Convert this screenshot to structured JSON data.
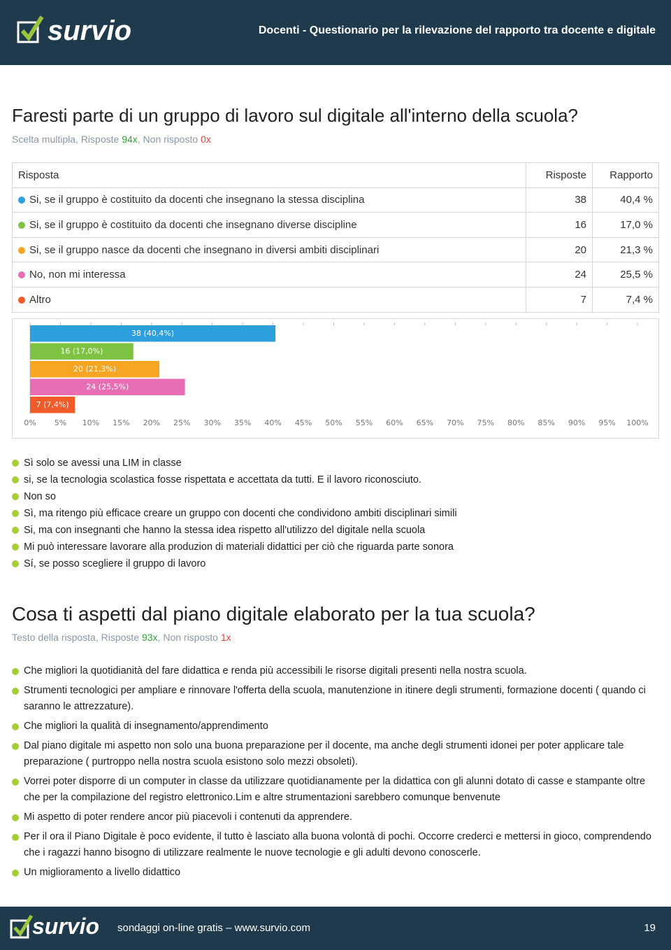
{
  "header": {
    "logo": "survio",
    "title": "Docenti - Questionario per la rilevazione del rapporto tra docente e digitale"
  },
  "question1": {
    "title": "Faresti parte di un gruppo di lavoro sul digitale all'interno della scuola?",
    "meta": {
      "kind": "Scelta multipla, Risposte ",
      "answered": "94x",
      "sep": ", Non risposto ",
      "unanswered": "0x"
    },
    "table": {
      "headers": [
        "Risposta",
        "Risposte",
        "Rapporto"
      ],
      "rows": [
        [
          "Si, se il gruppo è costituito da docenti che insegnano la stessa disciplina",
          "38",
          "40,4 %"
        ],
        [
          "Si, se il gruppo è costituito da docenti che insegnano diverse discipline",
          "16",
          "17,0 %"
        ],
        [
          "Si, se il gruppo nasce da docenti che insegnano in diversi ambiti disciplinari",
          "20",
          "21,3 %"
        ],
        [
          "No, non mi interessa",
          "24",
          "25,5 %"
        ],
        [
          "Altro",
          "7",
          "7,4 %"
        ]
      ]
    },
    "other_answers": [
      "Sì solo se avessi una LIM in classe",
      "si, se la tecnologia scolastica fosse rispettata e accettata da tutti. E il lavoro riconosciuto.",
      "Non so",
      "Sì, ma ritengo più efficace creare un gruppo con docenti che condividono ambiti disciplinari simili",
      "Si, ma con insegnanti che hanno la stessa idea rispetto all'utilizzo del digitale nella scuola",
      "Mi può interessare lavorare alla produzion di materiali didattici per ciò che riguarda parte sonora",
      "Sí, se posso scegliere il gruppo di lavoro"
    ]
  },
  "chart_data": {
    "type": "bar",
    "orientation": "horizontal",
    "values": [
      40.4,
      17.0,
      21.3,
      25.5,
      7.4
    ],
    "value_labels": [
      "38 (40,4%)",
      "16 (17,0%)",
      "20 (21,3%)",
      "24 (25,5%)",
      "7 (7,4%)"
    ],
    "colors": [
      "#2d9fdc",
      "#7dc242",
      "#f6a623",
      "#e86db4",
      "#f15a29"
    ],
    "xlim": [
      0,
      100
    ],
    "xticks": [
      {
        "value": 0,
        "label": "0%"
      },
      {
        "value": 5,
        "label": "5%"
      },
      {
        "value": 10,
        "label": "10%"
      },
      {
        "value": 15,
        "label": "15%"
      },
      {
        "value": 20,
        "label": "20%"
      },
      {
        "value": 25,
        "label": "25%"
      },
      {
        "value": 30,
        "label": "30%"
      },
      {
        "value": 35,
        "label": "35%"
      },
      {
        "value": 40,
        "label": "40%"
      },
      {
        "value": 45,
        "label": "45%"
      },
      {
        "value": 50,
        "label": "50%"
      },
      {
        "value": 55,
        "label": "55%"
      },
      {
        "value": 60,
        "label": "60%"
      },
      {
        "value": 65,
        "label": "65%"
      },
      {
        "value": 70,
        "label": "70%"
      },
      {
        "value": 75,
        "label": "75%"
      },
      {
        "value": 80,
        "label": "80%"
      },
      {
        "value": 85,
        "label": "85%"
      },
      {
        "value": 90,
        "label": "90%"
      },
      {
        "value": 95,
        "label": "95%"
      },
      {
        "value": 100,
        "label": "100%"
      }
    ]
  },
  "question2": {
    "title": "Cosa ti aspetti dal piano digitale elaborato per la tua scuola?",
    "meta": {
      "kind": "Testo della risposta, Risposte ",
      "answered": "93x",
      "sep": ", Non risposto ",
      "unanswered": "1x"
    },
    "answers": [
      "Che migliori la quotidianità del fare didattica e renda più accessibili le risorse digitali presenti nella nostra scuola.",
      "Strumenti tecnologici per ampliare e rinnovare l'offerta della scuola, manutenzione in itinere degli strumenti, formazione docenti ( quando ci saranno le attrezzature).",
      "Che migliori la qualità di insegnamento/apprendimento",
      "Dal piano digitale mi aspetto non solo una buona preparazione per il docente, ma anche degli strumenti idonei per poter applicare tale preparazione ( purtroppo nella nostra scuola esistono solo mezzi obsoleti).",
      "Vorrei poter disporre di un computer in classe da utilizzare quotidianamente per la didattica con gli alunni dotato di casse e stampante oltre che per la compilazione del registro elettronico.Lim e altre strumentazioni sarebbero comunque benvenute",
      "Mi aspetto di poter rendere ancor più piacevoli i contenuti da apprendere.",
      "Per il ora il Piano Digitale è poco evidente, il tutto è lasciato alla buona volontà di pochi. Occorre crederci e mettersi in gioco, comprendendo che i ragazzi hanno bisogno di utilizzare realmente le nuove tecnologie e gli adulti devono conoscerle.",
      "Un miglioramento a livello didattico"
    ]
  },
  "footer": {
    "logo": "survio",
    "text": "sondaggi on-line gratis – www.survio.com",
    "page": "19"
  }
}
